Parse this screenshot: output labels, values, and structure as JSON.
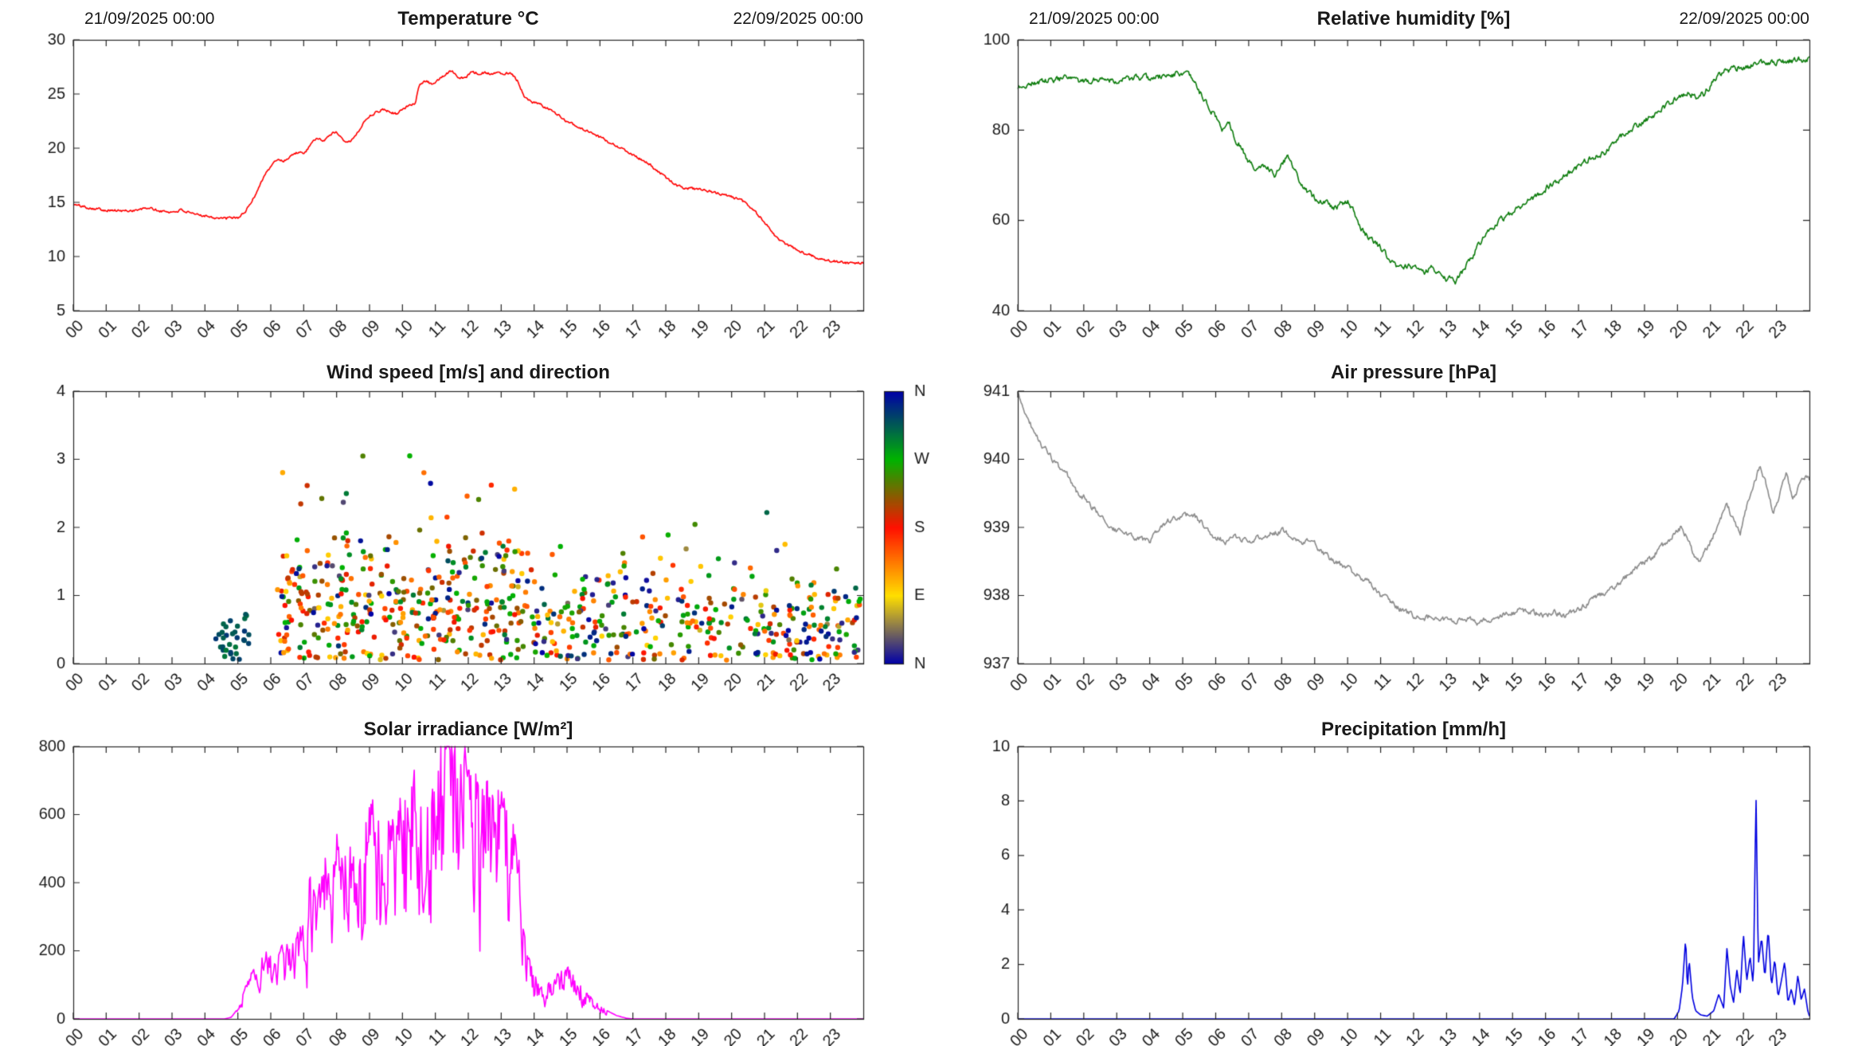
{
  "page": {
    "start_label": "21/09/2025 00:00",
    "end_label": "22/09/2025 00:00",
    "hour_labels": [
      "00",
      "01",
      "02",
      "03",
      "04",
      "05",
      "06",
      "07",
      "08",
      "09",
      "10",
      "11",
      "12",
      "13",
      "14",
      "15",
      "16",
      "17",
      "18",
      "19",
      "20",
      "21",
      "22",
      "23"
    ]
  },
  "chart_data": [
    {
      "id": "temperature",
      "type": "line",
      "title": "Temperature °C",
      "color": "#ff0000",
      "panel": {
        "col": "left",
        "row": 0
      },
      "xlim": [
        0,
        24
      ],
      "ylim": [
        5,
        30
      ],
      "yticks": [
        5,
        10,
        15,
        20,
        25,
        30
      ],
      "seed": 101,
      "noise": {
        "mode": "additive",
        "amp": 0.1,
        "persist": 0.5
      },
      "x": [
        0,
        0.5,
        1,
        1.5,
        2,
        2.3,
        2.6,
        3,
        3.3,
        3.6,
        4,
        4.3,
        4.6,
        5,
        5.2,
        5.5,
        5.8,
        6,
        6.2,
        6.4,
        6.6,
        6.8,
        7,
        7.2,
        7.4,
        7.6,
        7.8,
        8,
        8.2,
        8.4,
        8.6,
        8.8,
        9,
        9.2,
        9.4,
        9.6,
        9.8,
        10,
        10.2,
        10.4,
        10.5,
        10.7,
        10.9,
        11.1,
        11.3,
        11.5,
        11.7,
        11.9,
        12.1,
        12.3,
        12.5,
        12.7,
        12.9,
        13.1,
        13.3,
        13.5,
        13.7,
        13.9,
        14.2,
        14.5,
        15,
        15.5,
        16,
        16.5,
        17,
        17.5,
        18,
        18.3,
        18.6,
        19,
        19.5,
        20,
        20.3,
        20.6,
        21,
        21.3,
        21.6,
        22,
        22.3,
        22.6,
        23,
        23.5,
        24
      ],
      "y": [
        14.8,
        14.5,
        14.3,
        14.2,
        14.3,
        14.5,
        14.2,
        14.1,
        14.3,
        13.9,
        13.8,
        13.6,
        13.5,
        13.6,
        14.0,
        15.5,
        17.5,
        18.3,
        19.0,
        18.8,
        19.3,
        19.6,
        19.5,
        20.2,
        21.0,
        20.6,
        21.3,
        21.5,
        20.8,
        20.6,
        21.2,
        22.3,
        23.0,
        23.3,
        23.6,
        23.4,
        23.2,
        23.5,
        24.0,
        24.2,
        25.8,
        26.2,
        25.9,
        26.3,
        26.8,
        27.2,
        26.6,
        26.5,
        27.0,
        26.9,
        27.0,
        26.8,
        27.0,
        26.9,
        27.0,
        26.2,
        24.8,
        24.3,
        24.0,
        23.5,
        22.5,
        21.7,
        21.0,
        20.2,
        19.4,
        18.5,
        17.3,
        16.6,
        16.3,
        16.2,
        15.9,
        15.5,
        15.2,
        14.5,
        13.2,
        12.0,
        11.2,
        10.6,
        10.2,
        9.9,
        9.6,
        9.4,
        9.4
      ]
    },
    {
      "id": "humidity",
      "type": "line",
      "title": "Relative humidity [%]",
      "color": "#0e7d0e",
      "panel": {
        "col": "right",
        "row": 0
      },
      "xlim": [
        0,
        24
      ],
      "ylim": [
        40,
        100
      ],
      "yticks": [
        40,
        60,
        80,
        100
      ],
      "seed": 202,
      "noise": {
        "mode": "additive",
        "amp": 0.55,
        "persist": 0.55
      },
      "x": [
        0,
        0.5,
        1,
        1.5,
        2,
        2.5,
        3,
        3.5,
        4,
        4.5,
        4.8,
        5,
        5.2,
        5.4,
        5.7,
        6,
        6.2,
        6.4,
        6.6,
        6.8,
        7,
        7.2,
        7.5,
        7.8,
        8,
        8.2,
        8.4,
        8.6,
        8.8,
        9,
        9.3,
        9.6,
        10,
        10.2,
        10.4,
        10.7,
        11,
        11.3,
        11.6,
        12,
        12.3,
        12.6,
        12.9,
        13.1,
        13.3,
        13.5,
        13.8,
        14,
        14.3,
        14.6,
        15,
        15.4,
        15.8,
        16.2,
        16.6,
        17,
        17.4,
        17.8,
        18.2,
        18.6,
        19,
        19.4,
        19.8,
        20,
        20.3,
        20.6,
        20.8,
        21,
        21.3,
        21.6,
        22,
        22.4,
        22.8,
        23.2,
        23.6,
        24
      ],
      "y": [
        89.5,
        90.5,
        91,
        91.5,
        90.5,
        91.5,
        91,
        91.5,
        91.5,
        92,
        92.5,
        92.5,
        92,
        90,
        86,
        83,
        80,
        82,
        78,
        76,
        73,
        71,
        72.5,
        70,
        73,
        74,
        71,
        68,
        66,
        65,
        64,
        63,
        64,
        62,
        58,
        56,
        54,
        51,
        49.5,
        50,
        48.5,
        49.5,
        47.5,
        47,
        46.5,
        49,
        52,
        55,
        58,
        60,
        62,
        64,
        66,
        68,
        70,
        72,
        74,
        75,
        78,
        80,
        82,
        84,
        86,
        87.5,
        88,
        87.5,
        88,
        90,
        92.5,
        93.5,
        94,
        94.5,
        95,
        95.3,
        95.5,
        95.8
      ]
    },
    {
      "id": "wind",
      "type": "scatter",
      "title": "Wind speed [m/s] and direction",
      "panel": {
        "col": "left",
        "row": 1
      },
      "xlim": [
        0,
        24
      ],
      "ylim": [
        0,
        4
      ],
      "yticks": [
        0,
        1,
        2,
        3,
        4
      ],
      "seed": 20250921,
      "point_radius": 3.2,
      "colormap": [
        [
          0,
          "#0000a8"
        ],
        [
          0.25,
          "#ffdf00"
        ],
        [
          0.5,
          "#ff1000"
        ],
        [
          0.75,
          "#00b400"
        ],
        [
          1,
          "#0000a8"
        ]
      ],
      "colorbar_labels": [
        "N",
        "W",
        "S",
        "E",
        "N"
      ],
      "clusters": [
        {
          "n": 32,
          "t": [
            4.3,
            5.35
          ],
          "speed_mean": 0.3,
          "speed_sd": 0.2,
          "cap": 0.8,
          "high_frac": 0,
          "dirs": [
            [
              300,
              335,
              1
            ]
          ]
        },
        {
          "n": 390,
          "t": [
            6.2,
            14
          ],
          "speed_mean": 0.85,
          "speed_sd": 0.55,
          "cap": 3.45,
          "high_frac": 0.1,
          "dirs": [
            [
              150,
              215,
              0.33
            ],
            [
              95,
              150,
              0.2
            ],
            [
              240,
              300,
              0.22
            ],
            [
              330,
              390,
              0.1
            ],
            [
              215,
              240,
              0.09
            ],
            [
              0,
              360,
              0.06
            ]
          ]
        },
        {
          "n": 340,
          "t": [
            14,
            24
          ],
          "speed_mean": 0.62,
          "speed_sd": 0.4,
          "cap": 2.35,
          "high_frac": 0.05,
          "dirs": [
            [
              150,
              215,
              0.2
            ],
            [
              95,
              150,
              0.2
            ],
            [
              240,
              300,
              0.25
            ],
            [
              330,
              390,
              0.2
            ],
            [
              0,
              360,
              0.15
            ]
          ]
        }
      ]
    },
    {
      "id": "pressure",
      "type": "line",
      "title": "Air pressure [hPa]",
      "color": "#8c8c8c",
      "panel": {
        "col": "right",
        "row": 1
      },
      "xlim": [
        0,
        24
      ],
      "ylim": [
        937,
        941
      ],
      "yticks": [
        937,
        938,
        939,
        940,
        941
      ],
      "seed": 303,
      "noise": {
        "mode": "additive",
        "amp": 0.035,
        "persist": 0.6
      },
      "x": [
        0,
        0.3,
        0.6,
        0.9,
        1.2,
        1.5,
        1.8,
        2,
        2.2,
        2.5,
        2.8,
        3,
        3.3,
        3.6,
        4,
        4.3,
        4.6,
        5,
        5.3,
        5.6,
        6,
        6.3,
        6.6,
        7,
        7.3,
        7.6,
        8,
        8.3,
        8.6,
        9,
        9.3,
        9.6,
        10,
        10.3,
        10.6,
        11,
        11.3,
        11.6,
        12,
        12.3,
        12.6,
        13,
        13.3,
        13.6,
        14,
        14.3,
        14.6,
        15,
        15.3,
        15.6,
        16,
        16.3,
        16.6,
        17,
        17.3,
        17.6,
        18,
        18.3,
        18.6,
        19,
        19.3,
        19.6,
        19.9,
        20.1,
        20.3,
        20.5,
        20.7,
        20.9,
        21.1,
        21.3,
        21.5,
        21.7,
        21.9,
        22.1,
        22.3,
        22.5,
        22.7,
        22.9,
        23.1,
        23.3,
        23.5,
        23.7,
        23.9,
        24
      ],
      "y": [
        940.95,
        940.6,
        940.3,
        940.1,
        939.9,
        939.75,
        939.5,
        939.45,
        939.3,
        939.2,
        939.0,
        938.95,
        938.9,
        938.85,
        938.8,
        938.95,
        939.1,
        939.15,
        939.2,
        939.05,
        938.85,
        938.8,
        938.85,
        938.8,
        938.85,
        938.9,
        938.95,
        938.9,
        938.8,
        938.75,
        938.6,
        938.5,
        938.4,
        938.3,
        938.2,
        938.0,
        937.9,
        937.8,
        937.7,
        937.65,
        937.7,
        937.65,
        937.6,
        937.65,
        937.6,
        937.65,
        937.7,
        937.75,
        937.8,
        937.75,
        937.7,
        937.75,
        937.7,
        937.8,
        937.9,
        938.0,
        938.1,
        938.2,
        938.35,
        938.5,
        938.6,
        938.75,
        938.9,
        939.0,
        938.85,
        938.6,
        938.5,
        938.7,
        938.9,
        939.1,
        939.35,
        939.1,
        938.9,
        939.3,
        939.6,
        939.9,
        939.6,
        939.2,
        939.5,
        939.8,
        939.4,
        939.6,
        939.75,
        939.7
      ]
    },
    {
      "id": "solar",
      "type": "line",
      "title": "Solar irradiance [W/m²]",
      "color": "#ff00ff",
      "panel": {
        "col": "left",
        "row": 2
      },
      "xlim": [
        0,
        24
      ],
      "ylim": [
        0,
        800
      ],
      "yticks": [
        0,
        200,
        400,
        600,
        800
      ],
      "seed": 404,
      "noise": {
        "mode": "multiplicative",
        "amp": 0.4,
        "persist": 0.5
      },
      "x": [
        0,
        4.6,
        4.8,
        5,
        5.2,
        5.4,
        5.6,
        5.8,
        6,
        6.2,
        6.4,
        6.6,
        6.8,
        7,
        7.2,
        7.4,
        7.6,
        7.8,
        8,
        8.2,
        8.4,
        8.6,
        8.8,
        9,
        9.2,
        9.4,
        9.6,
        9.8,
        10,
        10.2,
        10.4,
        10.6,
        10.8,
        11,
        11.2,
        11.4,
        11.6,
        11.8,
        12,
        12.2,
        12.4,
        12.6,
        12.8,
        13,
        13.2,
        13.4,
        13.5,
        13.6,
        13.8,
        14,
        14.2,
        14.4,
        14.6,
        14.8,
        15,
        15.2,
        15.4,
        15.6,
        15.8,
        16,
        16.2,
        16.5,
        16.8,
        17,
        24
      ],
      "y": [
        0,
        0,
        5,
        30,
        80,
        120,
        150,
        170,
        190,
        160,
        210,
        180,
        230,
        260,
        380,
        300,
        450,
        380,
        500,
        420,
        550,
        350,
        480,
        560,
        600,
        480,
        580,
        520,
        640,
        560,
        680,
        600,
        700,
        650,
        780,
        790,
        720,
        760,
        700,
        650,
        600,
        640,
        580,
        620,
        560,
        540,
        520,
        300,
        180,
        120,
        100,
        90,
        110,
        130,
        150,
        120,
        90,
        70,
        50,
        35,
        25,
        10,
        2,
        0,
        0
      ]
    },
    {
      "id": "precipitation",
      "type": "line",
      "title": "Precipitation [mm/h]",
      "color": "#0000e0",
      "panel": {
        "col": "right",
        "row": 2
      },
      "xlim": [
        0,
        24
      ],
      "ylim": [
        0,
        10
      ],
      "yticks": [
        0,
        2,
        4,
        6,
        8,
        10
      ],
      "seed": 505,
      "noise": {
        "mode": "none",
        "amp": 0,
        "persist": 0
      },
      "x": [
        0,
        19.9,
        20.05,
        20.15,
        20.25,
        20.3,
        20.35,
        20.45,
        20.55,
        20.7,
        20.9,
        21.1,
        21.25,
        21.4,
        21.5,
        21.6,
        21.7,
        21.8,
        21.9,
        22.0,
        22.1,
        22.2,
        22.3,
        22.38,
        22.45,
        22.55,
        22.65,
        22.75,
        22.85,
        22.95,
        23.05,
        23.15,
        23.25,
        23.35,
        23.45,
        23.55,
        23.65,
        23.75,
        23.85,
        23.95,
        24
      ],
      "y": [
        0,
        0,
        0.3,
        1.2,
        3.0,
        1.0,
        2.2,
        0.8,
        0.3,
        0.15,
        0.1,
        0.3,
        0.9,
        0.4,
        2.6,
        1.2,
        0.6,
        1.8,
        0.9,
        3.1,
        1.4,
        2.3,
        1.2,
        8.3,
        2.0,
        3.0,
        1.5,
        3.3,
        1.2,
        2.2,
        0.8,
        1.4,
        2.1,
        0.6,
        1.1,
        0.5,
        1.6,
        0.7,
        1.1,
        0.3,
        0.1
      ]
    }
  ]
}
